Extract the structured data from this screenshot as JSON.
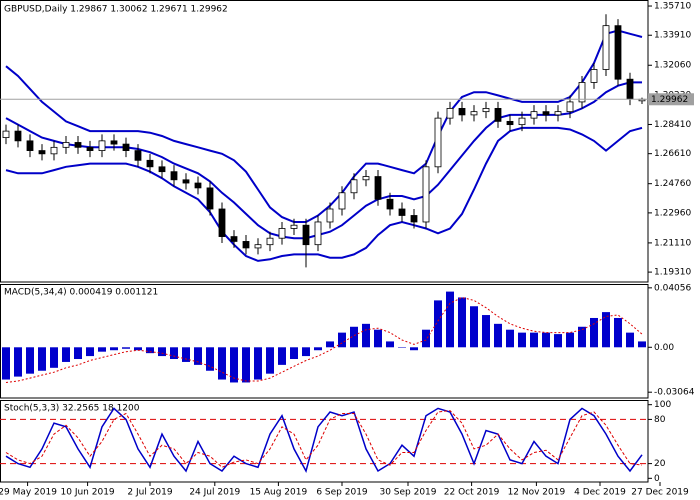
{
  "chart_data": [
    {
      "type": "candlestick",
      "title": "GBPUSD,Daily 1.29867 1.30062 1.29671 1.29962",
      "x": [
        0.5,
        1.5,
        2.5,
        3.5,
        4.5,
        5.5,
        6.5,
        7.5,
        8.5,
        9.5,
        10.5,
        11.5,
        12.5,
        13.5,
        14.5,
        15.5,
        16.5,
        17.5,
        18.5,
        19.5,
        20.5,
        21.5,
        22.5,
        23.5,
        24.5,
        25.5,
        26.5,
        27.5,
        28.5,
        29.5,
        30.5,
        31.5,
        32.5,
        33.5,
        34.5,
        35.5,
        36.5,
        37.5,
        38.5,
        39.5,
        40.5,
        41.5,
        42.5,
        43.5,
        44.5,
        45.5,
        46.5,
        47.5,
        48.5,
        49.5,
        50.5,
        51.5,
        52.5,
        53.5
      ],
      "open": [
        1.276,
        1.28,
        1.274,
        1.268,
        1.266,
        1.27,
        1.273,
        1.27,
        1.268,
        1.274,
        1.272,
        1.268,
        1.262,
        1.258,
        1.255,
        1.25,
        1.248,
        1.245,
        1.232,
        1.215,
        1.212,
        1.208,
        1.21,
        1.214,
        1.22,
        1.222,
        1.21,
        1.224,
        1.232,
        1.242,
        1.25,
        1.252,
        1.238,
        1.232,
        1.228,
        1.224,
        1.258,
        1.288,
        1.294,
        1.29,
        1.292,
        1.294,
        1.286,
        1.284,
        1.288,
        1.292,
        1.29,
        1.292,
        1.298,
        1.31,
        1.318,
        1.345,
        1.312,
        1.29867
      ],
      "high": [
        1.284,
        1.284,
        1.278,
        1.272,
        1.274,
        1.277,
        1.277,
        1.274,
        1.278,
        1.278,
        1.276,
        1.272,
        1.266,
        1.262,
        1.259,
        1.254,
        1.252,
        1.249,
        1.236,
        1.219,
        1.216,
        1.214,
        1.218,
        1.224,
        1.226,
        1.226,
        1.228,
        1.236,
        1.246,
        1.254,
        1.256,
        1.256,
        1.242,
        1.236,
        1.232,
        1.262,
        1.292,
        1.298,
        1.298,
        1.296,
        1.298,
        1.298,
        1.29,
        1.292,
        1.296,
        1.296,
        1.296,
        1.302,
        1.314,
        1.322,
        1.352,
        1.349,
        1.316,
        1.30062
      ],
      "low": [
        1.272,
        1.27,
        1.264,
        1.262,
        1.262,
        1.266,
        1.266,
        1.264,
        1.264,
        1.268,
        1.264,
        1.258,
        1.254,
        1.251,
        1.246,
        1.244,
        1.241,
        1.228,
        1.211,
        1.208,
        1.204,
        1.204,
        1.206,
        1.21,
        1.216,
        1.196,
        1.206,
        1.22,
        1.228,
        1.238,
        1.246,
        1.234,
        1.228,
        1.224,
        1.22,
        1.22,
        1.254,
        1.284,
        1.286,
        1.286,
        1.288,
        1.282,
        1.28,
        1.28,
        1.284,
        1.286,
        1.286,
        1.288,
        1.294,
        1.306,
        1.314,
        1.308,
        1.296,
        1.29671
      ],
      "close": [
        1.28,
        1.274,
        1.268,
        1.266,
        1.27,
        1.273,
        1.27,
        1.268,
        1.274,
        1.272,
        1.268,
        1.262,
        1.258,
        1.255,
        1.25,
        1.248,
        1.245,
        1.232,
        1.215,
        1.212,
        1.208,
        1.21,
        1.214,
        1.22,
        1.222,
        1.21,
        1.224,
        1.232,
        1.242,
        1.25,
        1.252,
        1.238,
        1.232,
        1.228,
        1.224,
        1.258,
        1.288,
        1.294,
        1.29,
        1.292,
        1.294,
        1.286,
        1.284,
        1.288,
        1.292,
        1.29,
        1.292,
        1.298,
        1.31,
        1.318,
        1.345,
        1.312,
        1.3,
        1.29962
      ],
      "bands": {
        "color": "#0000c8",
        "upper": [
          1.32,
          1.314,
          1.306,
          1.298,
          1.292,
          1.286,
          1.283,
          1.28,
          1.28,
          1.28,
          1.28,
          1.28,
          1.279,
          1.277,
          1.274,
          1.272,
          1.27,
          1.268,
          1.266,
          1.262,
          1.255,
          1.244,
          1.233,
          1.227,
          1.224,
          1.224,
          1.228,
          1.234,
          1.242,
          1.252,
          1.26,
          1.26,
          1.258,
          1.256,
          1.254,
          1.26,
          1.277,
          1.292,
          1.301,
          1.304,
          1.304,
          1.302,
          1.3,
          1.298,
          1.298,
          1.298,
          1.298,
          1.301,
          1.31,
          1.322,
          1.34,
          1.342,
          1.34,
          1.338
        ],
        "middle": [
          1.288,
          1.284,
          1.28,
          1.276,
          1.274,
          1.272,
          1.271,
          1.27,
          1.27,
          1.27,
          1.27,
          1.269,
          1.267,
          1.264,
          1.26,
          1.257,
          1.254,
          1.249,
          1.242,
          1.236,
          1.229,
          1.222,
          1.217,
          1.215,
          1.214,
          1.214,
          1.216,
          1.218,
          1.222,
          1.228,
          1.234,
          1.238,
          1.24,
          1.24,
          1.238,
          1.24,
          1.247,
          1.256,
          1.265,
          1.274,
          1.282,
          1.288,
          1.29,
          1.29,
          1.29,
          1.29,
          1.29,
          1.291,
          1.294,
          1.298,
          1.304,
          1.308,
          1.31,
          1.31
        ],
        "lower": [
          1.256,
          1.254,
          1.254,
          1.254,
          1.256,
          1.258,
          1.259,
          1.26,
          1.26,
          1.26,
          1.26,
          1.258,
          1.255,
          1.251,
          1.246,
          1.242,
          1.238,
          1.23,
          1.218,
          1.21,
          1.203,
          1.2,
          1.201,
          1.203,
          1.204,
          1.204,
          1.204,
          1.202,
          1.202,
          1.204,
          1.208,
          1.216,
          1.222,
          1.224,
          1.222,
          1.22,
          1.217,
          1.22,
          1.229,
          1.244,
          1.26,
          1.274,
          1.28,
          1.282,
          1.282,
          1.282,
          1.282,
          1.281,
          1.278,
          1.274,
          1.268,
          1.274,
          1.28,
          1.282
        ]
      },
      "xlim": [
        0,
        58
      ],
      "ylim": [
        1.187,
        1.3602
      ],
      "yticks": [
        {
          "value": 1.3571,
          "label": "1.35710"
        },
        {
          "value": 1.3391,
          "label": "1.33910"
        },
        {
          "value": 1.3206,
          "label": "1.32060"
        },
        {
          "value": 1.3023,
          "label": "1.30230"
        },
        {
          "value": 1.2841,
          "label": "1.28410"
        },
        {
          "value": 1.2661,
          "label": "1.26610"
        },
        {
          "value": 1.2476,
          "label": "1.24760"
        },
        {
          "value": 1.2296,
          "label": "1.22960"
        },
        {
          "value": 1.2111,
          "label": "1.21110"
        },
        {
          "value": 1.1931,
          "label": "1.19310"
        }
      ]
    },
    {
      "type": "bar",
      "title": "MACD(5,34,4) 0.000419 0.001121",
      "color": "#0000cc",
      "x": [
        0.5,
        1.5,
        2.5,
        3.5,
        4.5,
        5.5,
        6.5,
        7.5,
        8.5,
        9.5,
        10.5,
        11.5,
        12.5,
        13.5,
        14.5,
        15.5,
        16.5,
        17.5,
        18.5,
        19.5,
        20.5,
        21.5,
        22.5,
        23.5,
        24.5,
        25.5,
        26.5,
        27.5,
        28.5,
        29.5,
        30.5,
        31.5,
        32.5,
        33.5,
        34.5,
        35.5,
        36.5,
        37.5,
        38.5,
        39.5,
        40.5,
        41.5,
        42.5,
        43.5,
        44.5,
        45.5,
        46.5,
        47.5,
        48.5,
        49.5,
        50.5,
        51.5,
        52.5,
        53.5
      ],
      "values": [
        -0.022,
        -0.02,
        -0.018,
        -0.016,
        -0.014,
        -0.01,
        -0.008,
        -0.006,
        -0.003,
        -0.002,
        -0.001,
        -0.002,
        -0.004,
        -0.006,
        -0.008,
        -0.01,
        -0.012,
        -0.016,
        -0.022,
        -0.024,
        -0.024,
        -0.022,
        -0.018,
        -0.012,
        -0.008,
        -0.006,
        -0.002,
        0.004,
        0.01,
        0.014,
        0.016,
        0.012,
        0.004,
        0.0,
        -0.002,
        0.012,
        0.032,
        0.038,
        0.034,
        0.028,
        0.022,
        0.016,
        0.012,
        0.01,
        0.01,
        0.01,
        0.009,
        0.01,
        0.014,
        0.02,
        0.024,
        0.02,
        0.01,
        0.004
      ],
      "signal": {
        "color": "#dd0000",
        "values": [
          -0.024,
          -0.023,
          -0.021,
          -0.019,
          -0.017,
          -0.014,
          -0.012,
          -0.009,
          -0.007,
          -0.005,
          -0.003,
          -0.002,
          -0.003,
          -0.004,
          -0.006,
          -0.008,
          -0.01,
          -0.013,
          -0.017,
          -0.021,
          -0.023,
          -0.023,
          -0.021,
          -0.017,
          -0.013,
          -0.009,
          -0.006,
          -0.002,
          0.003,
          0.008,
          0.012,
          0.013,
          0.01,
          0.005,
          0.002,
          0.005,
          0.018,
          0.03,
          0.034,
          0.032,
          0.027,
          0.021,
          0.016,
          0.013,
          0.011,
          0.01,
          0.01,
          0.01,
          0.012,
          0.016,
          0.021,
          0.022,
          0.016,
          0.009
        ]
      },
      "xlim": [
        0,
        58
      ],
      "ylim": [
        -0.0346,
        0.0425
      ],
      "yticks": [
        0.04056,
        {
          "value": 0,
          "label": "0.00"
        },
        -0.03064
      ]
    },
    {
      "type": "line",
      "title": "Stoch(5,3,3) 32.2565 18.1200",
      "x": [
        0.5,
        1.5,
        2.5,
        3.5,
        4.5,
        5.5,
        6.5,
        7.5,
        8.5,
        9.5,
        10.5,
        11.5,
        12.5,
        13.5,
        14.5,
        15.5,
        16.5,
        17.5,
        18.5,
        19.5,
        20.5,
        21.5,
        22.5,
        23.5,
        24.5,
        25.5,
        26.5,
        27.5,
        28.5,
        29.5,
        30.5,
        31.5,
        32.5,
        33.5,
        34.5,
        35.5,
        36.5,
        37.5,
        38.5,
        39.5,
        40.5,
        41.5,
        42.5,
        43.5,
        44.5,
        45.5,
        46.5,
        47.5,
        48.5,
        49.5,
        50.5,
        51.5,
        52.5,
        53.5
      ],
      "series": [
        {
          "color": "#0000c8",
          "values": [
            30,
            20,
            15,
            40,
            75,
            70,
            40,
            15,
            70,
            95,
            80,
            40,
            15,
            60,
            30,
            10,
            50,
            20,
            10,
            30,
            20,
            15,
            60,
            85,
            40,
            10,
            70,
            90,
            85,
            90,
            40,
            10,
            20,
            45,
            30,
            85,
            95,
            90,
            60,
            20,
            65,
            60,
            25,
            20,
            50,
            30,
            20,
            80,
            95,
            85,
            60,
            30,
            10,
            32
          ]
        },
        {
          "color": "#dd0000",
          "dashed": true,
          "values": [
            35,
            25,
            20,
            30,
            60,
            72,
            55,
            30,
            50,
            80,
            88,
            60,
            30,
            45,
            40,
            20,
            35,
            30,
            15,
            22,
            25,
            20,
            40,
            70,
            60,
            25,
            45,
            80,
            88,
            88,
            60,
            25,
            18,
            35,
            35,
            65,
            90,
            92,
            75,
            40,
            45,
            60,
            40,
            25,
            35,
            38,
            25,
            55,
            85,
            90,
            72,
            45,
            20,
            18
          ]
        }
      ],
      "levels": [
        20,
        80
      ],
      "level_color": "#dd0000",
      "xlim": [
        0,
        58
      ],
      "ylim": [
        -5,
        105
      ],
      "yticks": [
        100,
        80,
        20,
        0
      ],
      "xticks": [
        {
          "value": 2.3,
          "label": "29 May 2019"
        },
        {
          "value": 7.3,
          "label": "10 Jun 2019"
        },
        {
          "value": 12.5,
          "label": "2 Jul 2019"
        },
        {
          "value": 17.9,
          "label": "24 Jul 2019"
        },
        {
          "value": 23.2,
          "label": "15 Aug 2019"
        },
        {
          "value": 28.5,
          "label": "6 Sep 2019"
        },
        {
          "value": 34,
          "label": "30 Sep 2019"
        },
        {
          "value": 39.3,
          "label": "22 Oct 2019"
        },
        {
          "value": 44.7,
          "label": "12 Nov 2019"
        },
        {
          "value": 50,
          "label": "4 Dec 2019"
        },
        {
          "value": 55,
          "label": "27 Dec 2019"
        }
      ]
    }
  ]
}
